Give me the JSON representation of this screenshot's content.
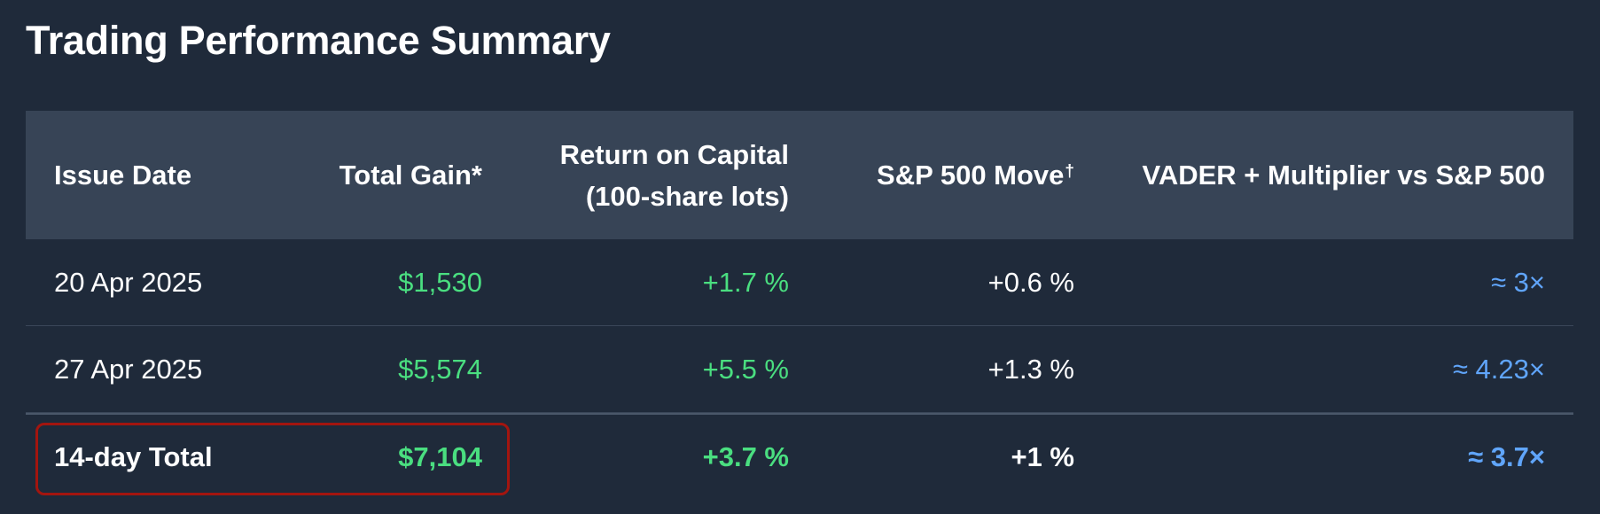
{
  "title": "Trading Performance Summary",
  "table": {
    "headers": {
      "issue_date": "Issue Date",
      "total_gain": "Total Gain*",
      "return_line1": "Return on Capital",
      "return_line2": "(100-share lots)",
      "sp500_move": "S&P 500 Move",
      "sp500_move_mark": "†",
      "vader_vs": "VADER + Multiplier vs S&P 500"
    },
    "rows": [
      {
        "issue_date": "20 Apr 2025",
        "total_gain": "$1,530",
        "return": "+1.7 %",
        "sp500_move": "+0.6 %",
        "multiplier": "≈ 3×"
      },
      {
        "issue_date": "27 Apr 2025",
        "total_gain": "$5,574",
        "return": "+5.5 %",
        "sp500_move": "+1.3 %",
        "multiplier": "≈ 4.23×"
      }
    ],
    "total": {
      "label": "14-day Total",
      "total_gain": "$7,104",
      "return": "+3.7 %",
      "sp500_move": "+1 %",
      "multiplier": "≈ 3.7×"
    }
  },
  "colors": {
    "background": "#1f2a3a",
    "header_background": "#374456",
    "gain_green": "#4ade80",
    "multiplier_blue": "#60a5fa",
    "highlight_border": "#a3150f"
  }
}
